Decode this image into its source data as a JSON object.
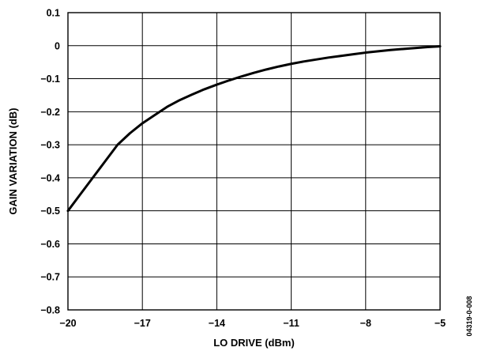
{
  "chart_data": {
    "type": "line",
    "title": "",
    "xlabel": "LO DRIVE (dBm)",
    "ylabel": "GAIN VARIATION (dB)",
    "xlim": [
      -20,
      -5
    ],
    "ylim": [
      -0.8,
      0.1
    ],
    "xticks": [
      -20,
      -17,
      -14,
      -11,
      -8,
      -5
    ],
    "yticks": [
      0.1,
      0,
      -0.1,
      -0.2,
      -0.3,
      -0.4,
      -0.5,
      -0.6,
      -0.7,
      -0.8
    ],
    "xtick_labels": [
      "−20",
      "−17",
      "−14",
      "−11",
      "−8",
      "−5"
    ],
    "ytick_labels": [
      "0.1",
      "0",
      "−0.1",
      "−0.2",
      "−0.3",
      "−0.4",
      "−0.5",
      "−0.6",
      "−0.7",
      "−0.8"
    ],
    "grid": true,
    "legend": "none",
    "series": [
      {
        "color": "#000000",
        "x": [
          -20,
          -19.5,
          -19,
          -18.5,
          -18,
          -17.5,
          -17,
          -16.5,
          -16,
          -15.5,
          -15,
          -14.5,
          -14,
          -13.5,
          -13,
          -12.5,
          -12,
          -11.5,
          -11,
          -10.5,
          -10,
          -9.5,
          -9,
          -8.5,
          -8,
          -7.5,
          -7,
          -6.5,
          -6,
          -5.5,
          -5
        ],
        "y": [
          -0.5,
          -0.45,
          -0.4,
          -0.35,
          -0.3,
          -0.265,
          -0.235,
          -0.21,
          -0.185,
          -0.165,
          -0.148,
          -0.132,
          -0.118,
          -0.105,
          -0.093,
          -0.082,
          -0.072,
          -0.063,
          -0.055,
          -0.048,
          -0.042,
          -0.036,
          -0.031,
          -0.026,
          -0.021,
          -0.017,
          -0.013,
          -0.01,
          -0.007,
          -0.004,
          -0.002
        ]
      }
    ]
  },
  "figure_id": "04319-0-008"
}
